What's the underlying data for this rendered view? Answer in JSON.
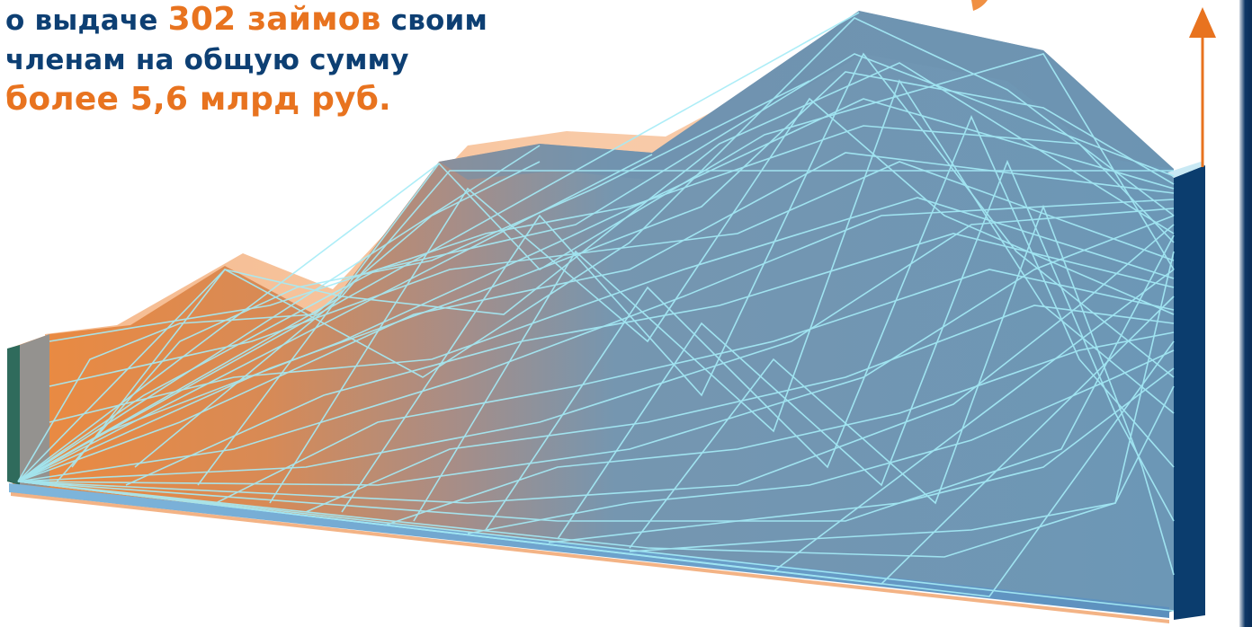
{
  "headline": {
    "line1_pre": "о выдаче ",
    "line1_highlight": "302 займов",
    "line1_post": " своим",
    "line2": "членам на общую сумму",
    "line3_highlight": "более 5,6 млрд руб."
  },
  "colors": {
    "text_dark_blue": "#0d3f73",
    "accent_orange": "#e8731f",
    "mountain_blue": "#6f95b3",
    "mountain_orange": "#ec8a3f",
    "wire_cyan": "#9fe7f5",
    "pillar_navy": "#0b3d6e"
  },
  "icons": {
    "growth_arrow": "arrow-up-icon"
  }
}
